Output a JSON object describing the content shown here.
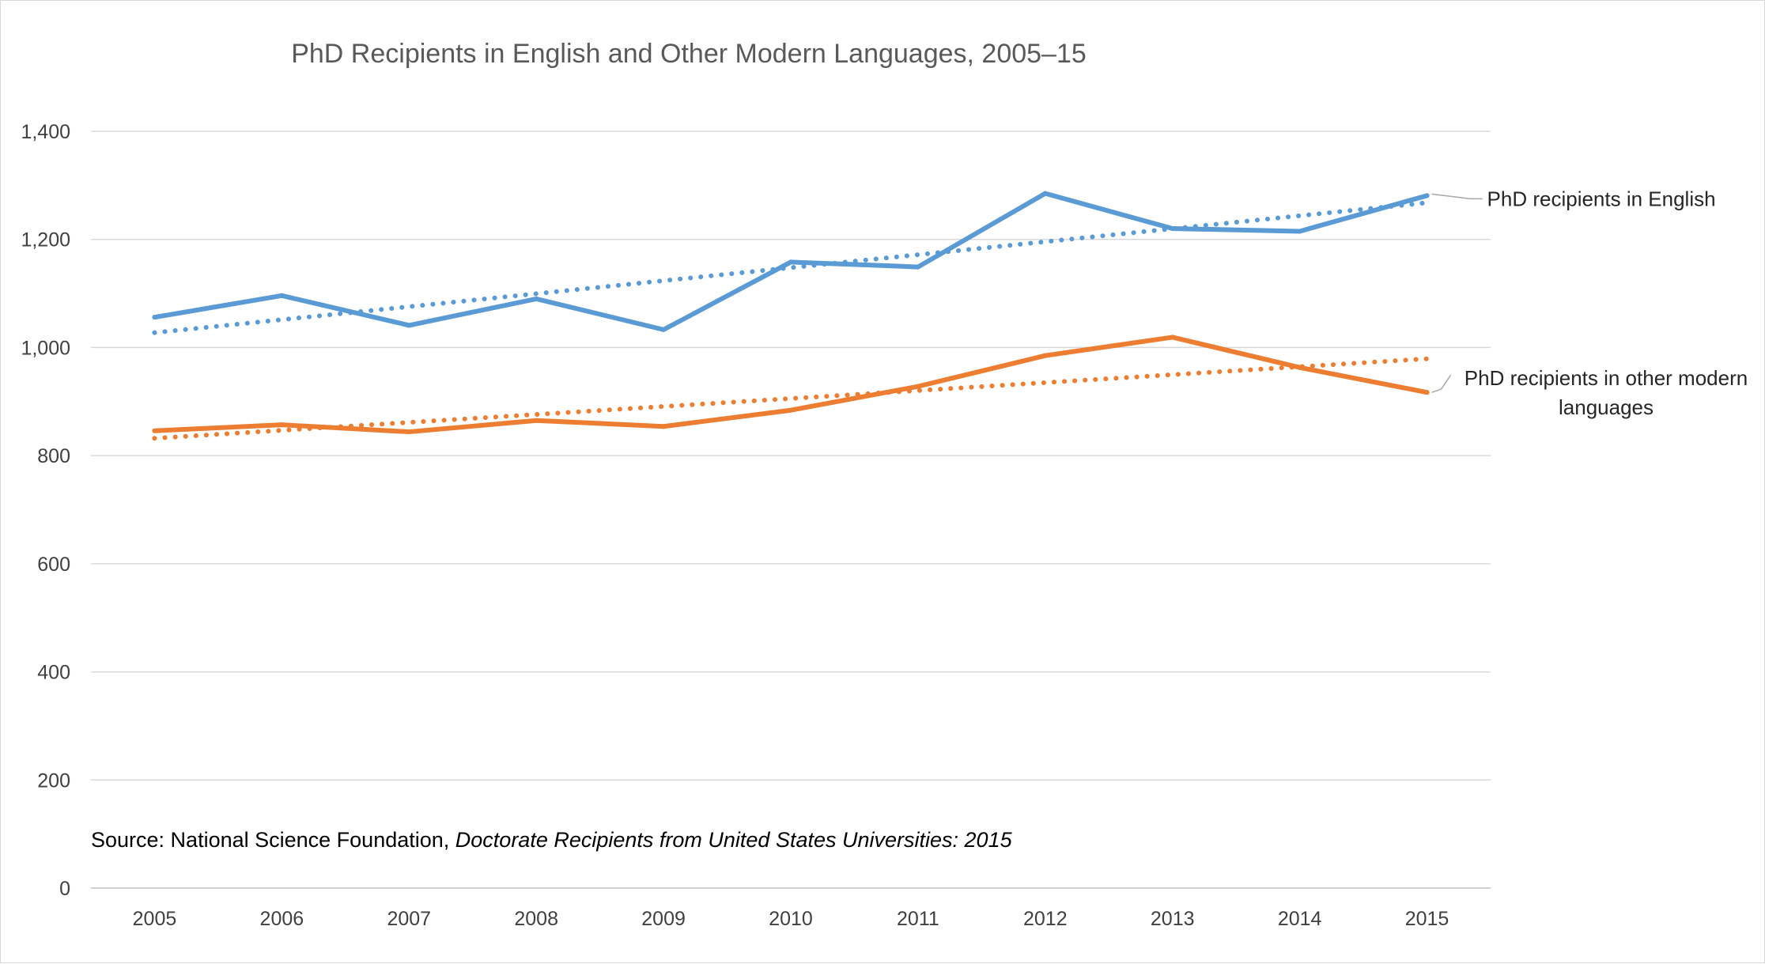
{
  "chart_data": {
    "type": "line",
    "title": "PhD Recipients in English and Other Modern Languages, 2005–15",
    "xlabel": "",
    "ylabel": "",
    "categories": [
      "2005",
      "2006",
      "2007",
      "2008",
      "2009",
      "2010",
      "2011",
      "2012",
      "2013",
      "2014",
      "2015"
    ],
    "ylim": [
      0,
      1400
    ],
    "yticks": [
      0,
      200,
      400,
      600,
      800,
      1000,
      1200,
      1400
    ],
    "ytick_labels": [
      "0",
      "200",
      "400",
      "600",
      "800",
      "1,000",
      "1,200",
      "1,400"
    ],
    "grid": "horizontal",
    "legend": "direct labels at right end of lines",
    "series": [
      {
        "name": "PhD recipients in English",
        "values": [
          1056,
          1096,
          1041,
          1090,
          1033,
          1158,
          1149,
          1285,
          1220,
          1215,
          1281
        ],
        "color": "#5b9bd5",
        "trendline": "linear",
        "label_lines": [
          "PhD recipients in English"
        ]
      },
      {
        "name": "PhD recipients in other modern languages",
        "values": [
          846,
          857,
          844,
          865,
          854,
          884,
          928,
          985,
          1019,
          963,
          917
        ],
        "color": "#ed7d31",
        "trendline": "linear",
        "label_lines": [
          "PhD recipients in other modern",
          "languages"
        ]
      }
    ],
    "annotation": {
      "prefix": "Source: National Science Foundation, ",
      "italic": "Doctorate Recipients from United States Universities: 2015"
    }
  },
  "colors": {
    "gridline": "#d9d9d9",
    "axis": "#bfbfbf",
    "leader_line": "#a6a6a6"
  }
}
